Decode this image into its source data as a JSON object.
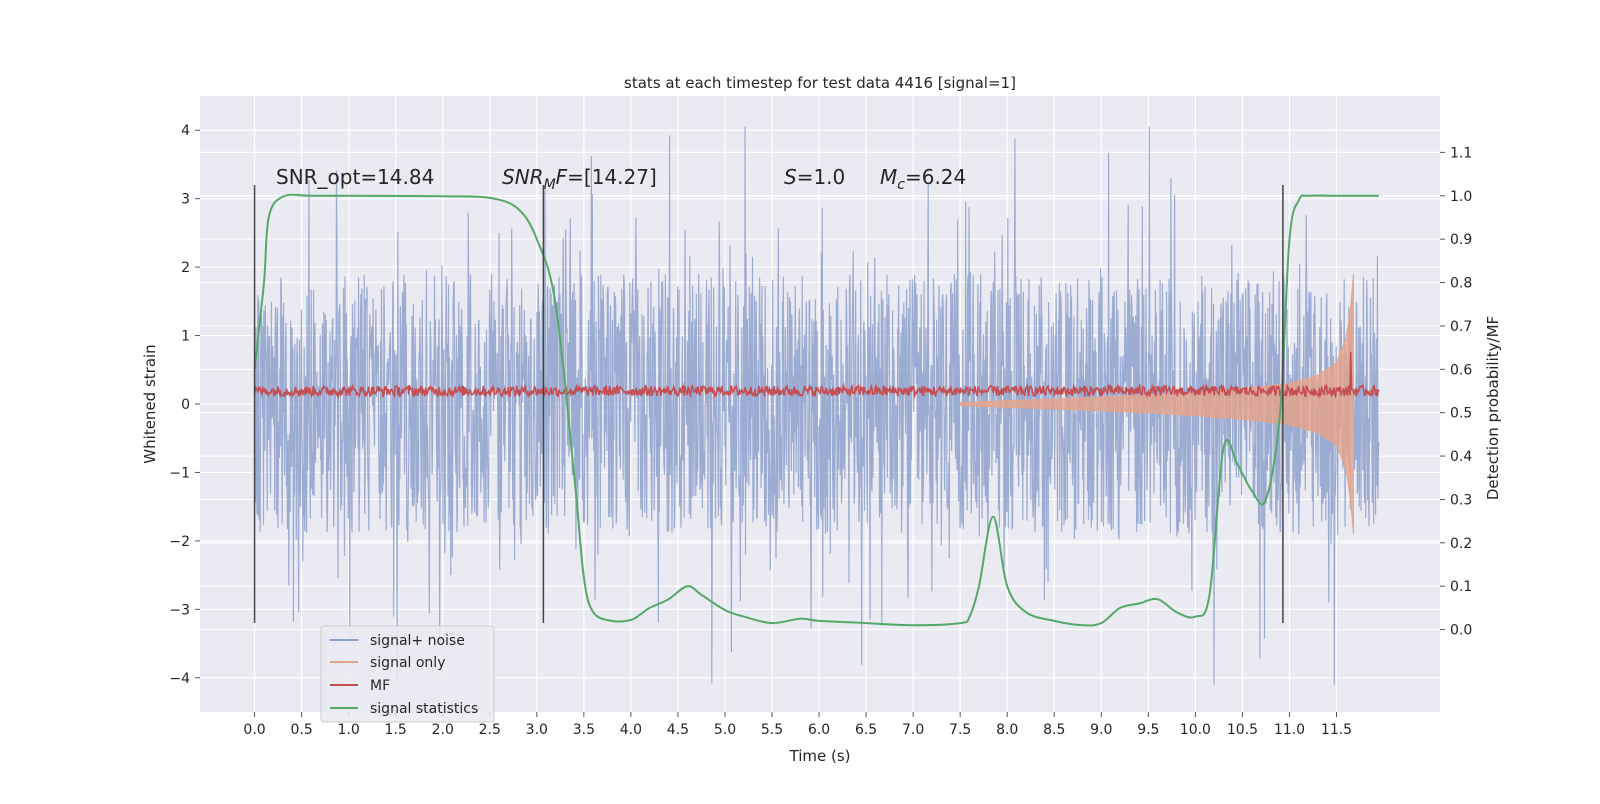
{
  "chart_data": {
    "type": "line",
    "title": "stats at each timestep for test data 4416 [signal=1]",
    "xlabel": "Time (s)",
    "ylabel_left": "Whitened strain",
    "ylabel_right": "Detection probability/MF",
    "xlim": [
      -0.58,
      12.6
    ],
    "ylim_left": [
      -4.5,
      4.5
    ],
    "ylim_right": [
      -0.19,
      1.23
    ],
    "x_ticks": [
      0.0,
      0.5,
      1.0,
      1.5,
      2.0,
      2.5,
      3.0,
      3.5,
      4.0,
      4.5,
      5.0,
      5.5,
      6.0,
      6.5,
      7.0,
      7.5,
      8.0,
      8.5,
      9.0,
      9.5,
      10.0,
      10.5,
      11.0,
      11.5
    ],
    "x_tick_labels": [
      "0.0",
      "0.5",
      "1.0",
      "1.5",
      "2.0",
      "2.5",
      "3.0",
      "3.5",
      "4.0",
      "4.5",
      "5.0",
      "5.5",
      "6.0",
      "6.5",
      "7.0",
      "7.5",
      "8.0",
      "8.5",
      "9.0",
      "9.5",
      "10.0",
      "10.5",
      "11.0",
      "11.5"
    ],
    "y_left_ticks": [
      -4,
      -3,
      -2,
      -1,
      0,
      1,
      2,
      3,
      4
    ],
    "y_left_tick_labels": [
      "−4",
      "−3",
      "−2",
      "−1",
      "0",
      "1",
      "2",
      "3",
      "4"
    ],
    "y_right_ticks": [
      0.0,
      0.1,
      0.2,
      0.3,
      0.4,
      0.5,
      0.6,
      0.7,
      0.8,
      0.9,
      1.0,
      1.1
    ],
    "y_right_tick_labels": [
      "0.0",
      "0.1",
      "0.2",
      "0.3",
      "0.4",
      "0.5",
      "0.6",
      "0.7",
      "0.8",
      "0.9",
      "1.0",
      "1.1"
    ],
    "grid": true,
    "legend_position": "lower-left",
    "annotations": {
      "snr_opt": "SNR_opt=14.84",
      "snr_mf_sym": "SNR",
      "snr_mf_sub": "M",
      "snr_mf_tail": "F",
      "snr_mf_value": "=[14.27]",
      "s_sym": "S",
      "s_value": "=1.0",
      "mc_sym": "M",
      "mc_sub": "c",
      "mc_value": "=6.24"
    },
    "vertical_lines_x": [
      0.0,
      3.07,
      10.93
    ],
    "series": [
      {
        "name": "signal+ noise",
        "color": "#8da0cb",
        "axis": "left",
        "x_range": [
          0.0,
          11.95
        ],
        "core_amplitude": 1.9,
        "peak_max": 4.05,
        "peak_min": -4.1
      },
      {
        "name": "signal only",
        "color": "#e6a488",
        "axis": "left",
        "envelope_x": [
          7.5,
          8.0,
          8.5,
          9.0,
          9.5,
          10.0,
          10.5,
          11.0,
          11.3,
          11.5,
          11.6,
          11.65,
          11.68
        ],
        "envelope_amp": [
          0.02,
          0.05,
          0.07,
          0.1,
          0.13,
          0.17,
          0.22,
          0.3,
          0.42,
          0.6,
          0.95,
          1.4,
          1.9
        ]
      },
      {
        "name": "MF",
        "color": "#c44e52",
        "axis": "right",
        "x_range": [
          0.0,
          11.95
        ],
        "mean": 0.55,
        "spike_x": 11.65,
        "spike_value": 0.64
      },
      {
        "name": "signal statistics",
        "color": "#55a868",
        "axis": "right",
        "x": [
          0.0,
          0.1,
          0.15,
          0.3,
          0.6,
          1.0,
          2.0,
          2.5,
          2.8,
          3.0,
          3.2,
          3.4,
          3.5,
          3.6,
          3.8,
          4.0,
          4.1,
          4.2,
          4.4,
          4.6,
          4.75,
          5.0,
          5.2,
          5.5,
          5.8,
          6.0,
          6.5,
          7.0,
          7.5,
          7.6,
          7.7,
          7.85,
          8.0,
          8.2,
          8.5,
          8.8,
          9.0,
          9.2,
          9.4,
          9.6,
          9.8,
          10.0,
          10.15,
          10.3,
          10.45,
          10.6,
          10.75,
          10.9,
          11.0,
          11.1,
          11.2,
          11.5,
          11.95
        ],
        "y": [
          0.6,
          0.8,
          0.95,
          0.998,
          1.0,
          1.0,
          0.999,
          0.995,
          0.97,
          0.9,
          0.75,
          0.35,
          0.12,
          0.04,
          0.02,
          0.022,
          0.035,
          0.05,
          0.07,
          0.1,
          0.08,
          0.045,
          0.03,
          0.015,
          0.025,
          0.02,
          0.015,
          0.01,
          0.015,
          0.03,
          0.1,
          0.26,
          0.1,
          0.04,
          0.02,
          0.01,
          0.015,
          0.05,
          0.06,
          0.07,
          0.04,
          0.03,
          0.08,
          0.42,
          0.38,
          0.32,
          0.3,
          0.5,
          0.9,
          0.99,
          1.0,
          1.0,
          1.0
        ]
      }
    ]
  }
}
